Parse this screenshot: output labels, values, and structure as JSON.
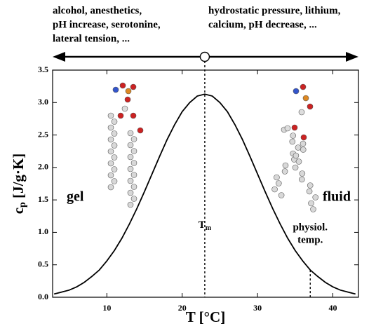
{
  "chart_data": {
    "type": "line",
    "top_left_lines": [
      "alcohol, anesthetics,",
      "pH increase, serotonine,",
      "lateral tension,  ..."
    ],
    "top_right_lines": [
      "hydrostatic pressure,  lithium,",
      "calcium,  pH decrease,  ..."
    ],
    "xlabel": "T [°C]",
    "ylabel": {
      "base": "c",
      "sub": "p",
      "rest": " [J/g·K]"
    },
    "tm_label": {
      "base": "T",
      "sub": "m"
    },
    "tm": 23,
    "physiol_label": [
      "physiol.",
      "temp."
    ],
    "physiol_temp": 37,
    "region_labels": [
      "gel",
      "fluid"
    ],
    "x": [
      3,
      4,
      5,
      6,
      7,
      8,
      9,
      10,
      11,
      12,
      13,
      14,
      15,
      16,
      17,
      18,
      19,
      20,
      21,
      22,
      23,
      24,
      25,
      26,
      27,
      28,
      29,
      30,
      31,
      32,
      33,
      34,
      35,
      36,
      37,
      38,
      39,
      40,
      41,
      42,
      43
    ],
    "values": [
      0.05,
      0.08,
      0.11,
      0.16,
      0.23,
      0.32,
      0.42,
      0.56,
      0.72,
      0.91,
      1.13,
      1.37,
      1.63,
      1.9,
      2.17,
      2.43,
      2.66,
      2.86,
      3.0,
      3.1,
      3.13,
      3.1,
      3.0,
      2.86,
      2.66,
      2.43,
      2.17,
      1.9,
      1.63,
      1.37,
      1.13,
      0.91,
      0.72,
      0.56,
      0.42,
      0.32,
      0.23,
      0.16,
      0.11,
      0.08,
      0.05
    ],
    "color": "#000000",
    "xlim": [
      2.8,
      43.4
    ],
    "ylim": [
      0,
      3.5
    ],
    "xticks": [
      10,
      20,
      30,
      40
    ],
    "yticks": [
      {
        "value": 0,
        "label": "0.0"
      },
      0.5,
      {
        "value": 1,
        "label": "1.0"
      },
      1.5,
      {
        "value": 2,
        "label": "2.0"
      },
      2.5,
      {
        "value": 3,
        "label": "3.0"
      },
      3.5
    ]
  }
}
